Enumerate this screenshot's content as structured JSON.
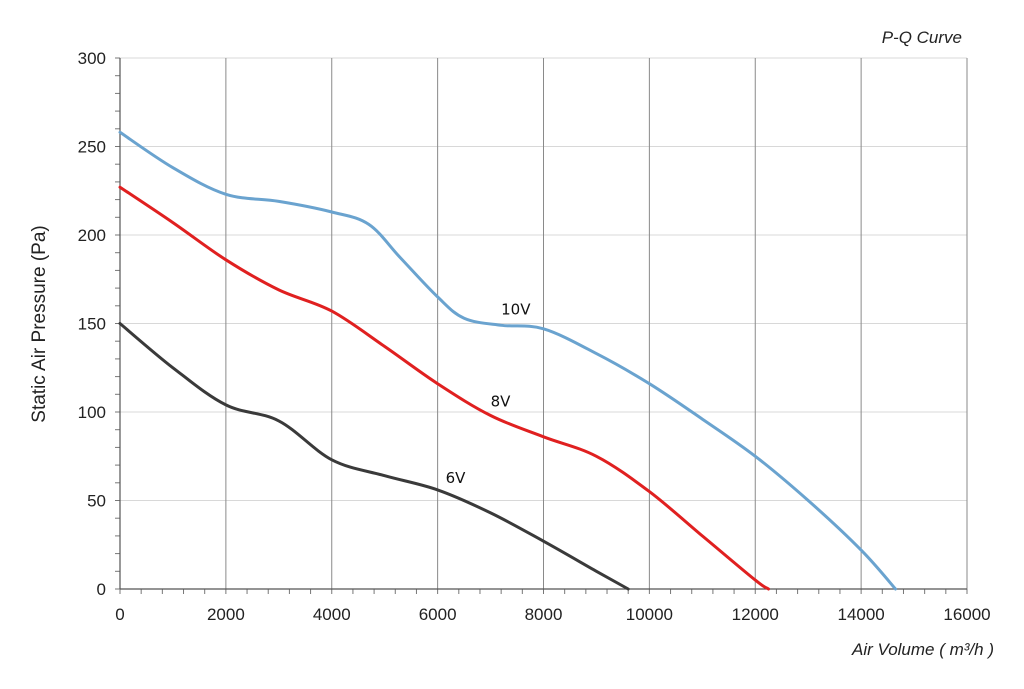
{
  "chart_data": {
    "type": "line",
    "title": "P-Q Curve",
    "xlabel": "Air Volume ( m³/h )",
    "ylabel": "Static Air Pressure  (Pa)",
    "xlim": [
      0,
      16000
    ],
    "ylim": [
      0,
      300
    ],
    "x_ticks": [
      0,
      2000,
      4000,
      6000,
      8000,
      10000,
      12000,
      14000,
      16000
    ],
    "y_ticks": [
      0,
      50,
      100,
      150,
      200,
      250,
      300
    ],
    "grid": "both",
    "legend": "none",
    "series": [
      {
        "name": "10V",
        "color": "#6aa3cf",
        "label_at": [
          7200,
          155
        ],
        "points": [
          [
            0,
            258
          ],
          [
            1000,
            238
          ],
          [
            2000,
            223
          ],
          [
            3000,
            219
          ],
          [
            4000,
            213
          ],
          [
            4700,
            206
          ],
          [
            5300,
            187
          ],
          [
            6000,
            165
          ],
          [
            6500,
            153
          ],
          [
            7200,
            149
          ],
          [
            8000,
            147
          ],
          [
            9000,
            133
          ],
          [
            10000,
            116
          ],
          [
            11000,
            96
          ],
          [
            12000,
            75
          ],
          [
            13000,
            50
          ],
          [
            14000,
            22
          ],
          [
            14650,
            0
          ]
        ]
      },
      {
        "name": "8V",
        "color": "#e02020",
        "label_at": [
          7000,
          103
        ],
        "points": [
          [
            0,
            227
          ],
          [
            1000,
            207
          ],
          [
            2000,
            186
          ],
          [
            3000,
            169
          ],
          [
            4000,
            157
          ],
          [
            5000,
            137
          ],
          [
            6000,
            116
          ],
          [
            7000,
            98
          ],
          [
            8000,
            86
          ],
          [
            9000,
            75
          ],
          [
            10000,
            55
          ],
          [
            11000,
            30
          ],
          [
            12000,
            5
          ],
          [
            12250,
            0
          ]
        ]
      },
      {
        "name": "6V",
        "color": "#3a3a3a",
        "label_at": [
          6150,
          60
        ],
        "points": [
          [
            0,
            150
          ],
          [
            1000,
            125
          ],
          [
            2000,
            104
          ],
          [
            3000,
            95
          ],
          [
            4000,
            73
          ],
          [
            5000,
            64
          ],
          [
            6000,
            56
          ],
          [
            7000,
            43
          ],
          [
            8000,
            27
          ],
          [
            9000,
            10
          ],
          [
            9600,
            0
          ]
        ]
      }
    ]
  }
}
